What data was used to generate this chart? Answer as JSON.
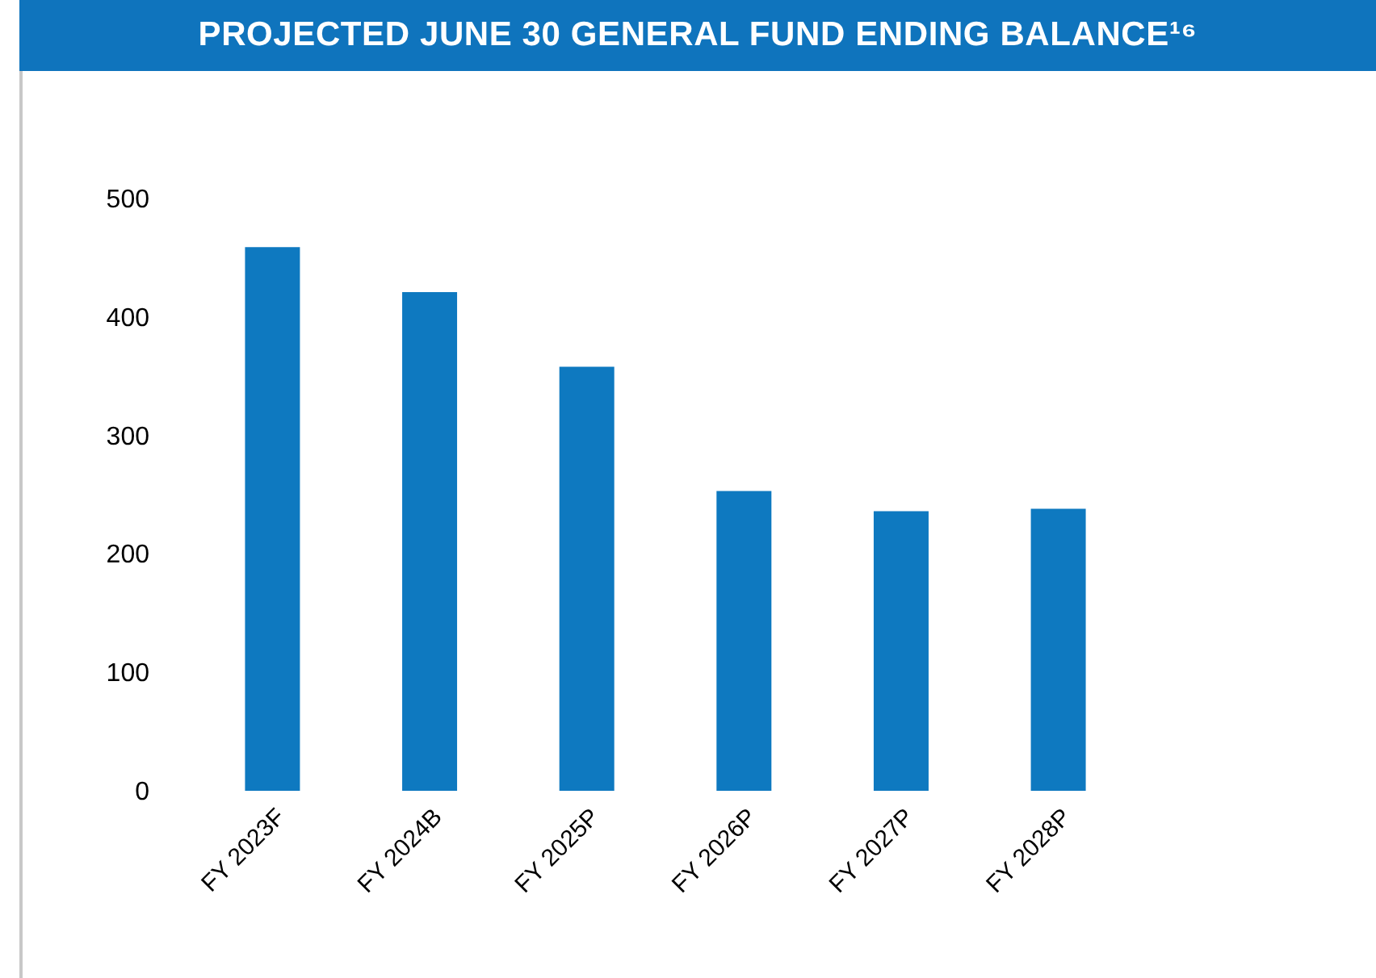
{
  "chart_data": {
    "type": "bar",
    "title": "PROJECTED JUNE 30 GENERAL FUND ENDING BALANCE¹⁶",
    "categories": [
      "FY 2023F",
      "FY 2024B",
      "FY 2025P",
      "FY 2026P",
      "FY 2027P",
      "FY 2028P"
    ],
    "values": [
      459,
      421,
      358,
      253,
      236,
      238
    ],
    "color": "#0e79c0",
    "ylim": [
      0,
      500
    ],
    "yticks": [
      0,
      100,
      200,
      300,
      400,
      500
    ]
  }
}
